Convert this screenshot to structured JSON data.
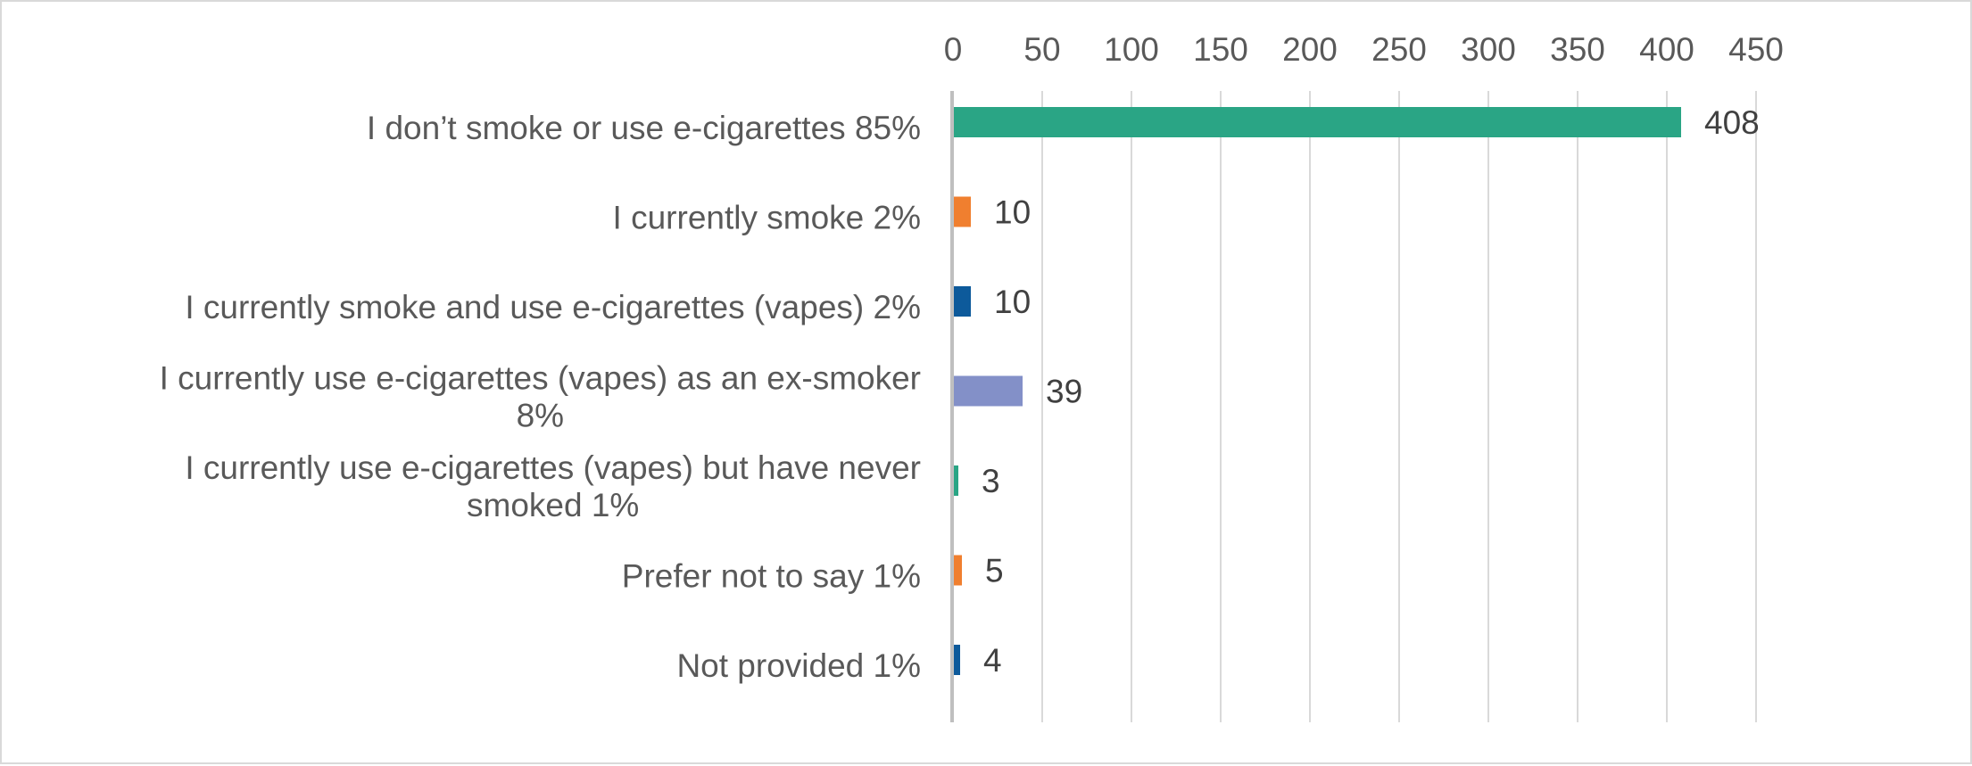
{
  "chart_data": {
    "type": "bar",
    "orientation": "horizontal",
    "title": "",
    "xlabel": "",
    "ylabel": "",
    "xlim": [
      0,
      450
    ],
    "x_ticks": [
      0,
      50,
      100,
      150,
      200,
      250,
      300,
      350,
      400,
      450
    ],
    "x_axis_position": "top",
    "grid": true,
    "legend": "none",
    "categories": [
      "I don’t smoke or use e-cigarettes 85%",
      "I currently smoke 2%",
      "I currently smoke and use e-cigarettes (vapes) 2%",
      "I currently use e-cigarettes (vapes) as an ex-smoker 8%",
      "I currently use e-cigarettes (vapes) but have never smoked  1%",
      "Prefer not to say 1%",
      "Not provided 1%"
    ],
    "category_lines": [
      [
        "I don’t smoke or use e-cigarettes 85%"
      ],
      [
        "I currently smoke 2%"
      ],
      [
        "I currently smoke and use e-cigarettes (vapes) 2%"
      ],
      [
        "I currently use e-cigarettes (vapes) as an ex-smoker",
        "8%"
      ],
      [
        "I currently use e-cigarettes (vapes) but have never",
        "smoked  1%"
      ],
      [
        "Prefer not to say 1%"
      ],
      [
        "Not provided 1%"
      ]
    ],
    "values": [
      408,
      10,
      10,
      39,
      3,
      5,
      4
    ],
    "colors": [
      "#2aa585",
      "#f07f2f",
      "#0d5a9b",
      "#8390c8",
      "#2aa585",
      "#f07f2f",
      "#0d5a9b"
    ],
    "gridline_color": "#d9d9d9",
    "axis_line_color": "#bfbfbf"
  }
}
